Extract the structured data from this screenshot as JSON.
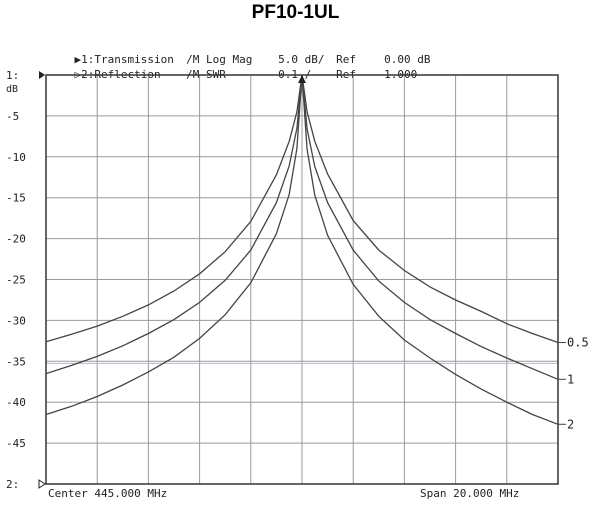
{
  "title": "PF10-1UL",
  "header": {
    "trace1": {
      "marker": "▶",
      "label": "1:Transmission",
      "format": "/M Log Mag",
      "scale": "5.0 dB/",
      "ref": "Ref",
      "ref_value": "0.00 dB"
    },
    "trace2": {
      "marker": "▷",
      "label": "2:Reflection",
      "format": "/M SWR",
      "scale": "0.1 /",
      "ref": "Ref",
      "ref_value": "1.000"
    }
  },
  "footer": {
    "center": "Center 445.000 MHz",
    "span": "Span 20.000 MHz"
  },
  "chart_data": {
    "type": "line",
    "title": "PF10-1UL",
    "unit_label": "dB",
    "x": [
      435,
      436,
      437,
      438,
      439,
      440,
      441,
      442,
      443,
      444,
      444.5,
      444.8,
      445,
      445.2,
      445.5,
      446,
      447,
      448,
      449,
      450,
      451,
      452,
      453,
      454,
      455
    ],
    "xlim": [
      435,
      455
    ],
    "ylim": [
      -50,
      0
    ],
    "y_ticks": [
      {
        "value": 0,
        "label": "1:"
      },
      {
        "value": -5,
        "label": "-5"
      },
      {
        "value": -10,
        "label": "-10"
      },
      {
        "value": -15,
        "label": "-15"
      },
      {
        "value": -20,
        "label": "-20"
      },
      {
        "value": -25,
        "label": "-25"
      },
      {
        "value": -30,
        "label": "-30"
      },
      {
        "value": -35,
        "label": "-35"
      },
      {
        "value": -40,
        "label": "-40"
      },
      {
        "value": -45,
        "label": "-45"
      },
      {
        "value": -50,
        "label": "2:"
      }
    ],
    "grid": true,
    "series": [
      {
        "name": "0.5",
        "values": [
          -32.6,
          -31.7,
          -30.7,
          -29.5,
          -28.1,
          -26.4,
          -24.3,
          -21.6,
          -17.9,
          -12.2,
          -8.1,
          -4.5,
          0,
          -4.5,
          -8.1,
          -12.1,
          -17.8,
          -21.4,
          -23.9,
          -25.9,
          -27.5,
          -28.9,
          -30.4,
          -31.6,
          -32.7
        ]
      },
      {
        "name": "1",
        "values": [
          -36.5,
          -35.5,
          -34.4,
          -33.1,
          -31.6,
          -29.9,
          -27.8,
          -25.1,
          -21.4,
          -15.6,
          -11.1,
          -6.5,
          0,
          -6.6,
          -11.2,
          -15.6,
          -21.4,
          -25.2,
          -27.8,
          -29.9,
          -31.6,
          -33.2,
          -34.6,
          -35.9,
          -37.2
        ]
      },
      {
        "name": "2",
        "values": [
          -41.5,
          -40.5,
          -39.3,
          -37.9,
          -36.3,
          -34.5,
          -32.2,
          -29.3,
          -25.4,
          -19.4,
          -14.6,
          -9.0,
          0,
          -9.1,
          -14.7,
          -19.6,
          -25.6,
          -29.5,
          -32.4,
          -34.6,
          -36.6,
          -38.4,
          -40.0,
          -41.5,
          -42.7
        ]
      }
    ],
    "colors": {
      "trace": "#444444",
      "grid": "#9a9a9a",
      "ref_line": "#b8b8cc",
      "frame": "#333333"
    }
  }
}
